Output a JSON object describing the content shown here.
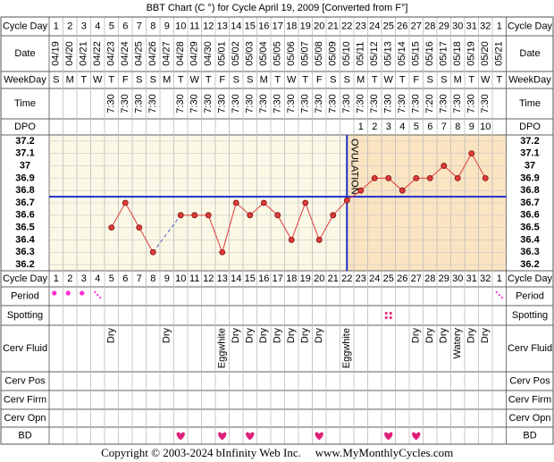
{
  "chart_data": {
    "type": "line",
    "title": "BBT Chart (C °) for Cycle April 19, 2009  [Converted from F°]",
    "row_labels": {
      "cycle_day": "Cycle Day",
      "date": "Date",
      "weekday": "WeekDay",
      "time": "Time",
      "dpo": "DPO",
      "period": "Period",
      "spotting": "Spotting",
      "cerv_fluid": "Cerv Fluid",
      "cerv_pos": "Cerv Pos",
      "cerv_firm": "Cerv Firm",
      "cerv_opn": "Cerv Opn",
      "bd": "BD"
    },
    "categories": [
      1,
      2,
      3,
      4,
      5,
      6,
      7,
      8,
      9,
      10,
      11,
      12,
      13,
      14,
      15,
      16,
      17,
      18,
      19,
      20,
      21,
      22,
      23,
      24,
      25,
      26,
      27,
      28,
      29,
      30,
      31,
      32,
      1
    ],
    "dates": [
      "04/19",
      "04/20",
      "04/21",
      "04/22",
      "04/23",
      "04/24",
      "04/25",
      "04/26",
      "04/27",
      "04/28",
      "04/29",
      "04/30",
      "05/01",
      "05/02",
      "05/03",
      "05/04",
      "05/05",
      "05/06",
      "05/07",
      "05/08",
      "05/09",
      "05/10",
      "05/11",
      "05/12",
      "05/13",
      "05/14",
      "05/15",
      "05/16",
      "05/17",
      "05/18",
      "05/19",
      "05/20",
      "05/21"
    ],
    "weekdays": [
      "S",
      "M",
      "T",
      "W",
      "T",
      "F",
      "S",
      "S",
      "M",
      "T",
      "W",
      "T",
      "F",
      "S",
      "S",
      "M",
      "T",
      "W",
      "T",
      "F",
      "S",
      "S",
      "M",
      "T",
      "W",
      "T",
      "F",
      "S",
      "S",
      "M",
      "T",
      "W",
      "T"
    ],
    "times": [
      null,
      null,
      null,
      null,
      "7:30",
      "7:30",
      "7:30",
      "7:30",
      null,
      "7:30",
      "7:30",
      "7:30",
      "7:30",
      "7:30",
      "7:30",
      "7:30",
      "7:30",
      "7:30",
      "7:30",
      "7:30",
      "7:30",
      "7:30",
      "7:30",
      "7:30",
      "7:30",
      "7:30",
      "7:30",
      "7:20",
      "7:30",
      "7:30",
      "7:30",
      "7:30",
      null
    ],
    "dpo": [
      null,
      null,
      null,
      null,
      null,
      null,
      null,
      null,
      null,
      null,
      null,
      null,
      null,
      null,
      null,
      null,
      null,
      null,
      null,
      null,
      null,
      null,
      1,
      2,
      3,
      4,
      5,
      6,
      7,
      8,
      9,
      10,
      null
    ],
    "values": [
      null,
      null,
      null,
      null,
      36.5,
      36.7,
      36.5,
      36.3,
      null,
      36.6,
      36.6,
      36.6,
      36.3,
      36.7,
      36.6,
      36.7,
      36.6,
      36.4,
      36.7,
      36.4,
      36.6,
      36.72,
      36.8,
      36.9,
      36.9,
      36.8,
      36.9,
      36.9,
      37.0,
      36.9,
      37.1,
      36.9,
      null
    ],
    "color": "#e03a3a",
    "ylim": [
      36.15,
      37.25
    ],
    "yticks": [
      37.2,
      37.1,
      37.0,
      36.9,
      36.8,
      36.7,
      36.6,
      36.5,
      36.4,
      36.3,
      36.2
    ],
    "coverline": 36.75,
    "coverline_color": "#1f2fcc",
    "ovulation_day": 22,
    "ovulation_label": "OVULATION",
    "cerv_fluid": [
      null,
      null,
      null,
      null,
      "Dry",
      null,
      null,
      null,
      "Dry",
      null,
      null,
      null,
      "Eggwhite",
      "Dry",
      "Dry",
      "Dry",
      "Dry",
      "Dry",
      "Dry",
      "Dry",
      null,
      "Eggwhite",
      null,
      null,
      null,
      null,
      "Dry",
      "Dry",
      "Dry",
      "Watery",
      "Dry",
      "Dry",
      null
    ],
    "period_heavy_columns": [
      1,
      2,
      3
    ],
    "period_light_columns": [
      4,
      33
    ],
    "spotting_columns": [
      25
    ],
    "bd_columns": [
      10,
      13,
      15,
      20,
      25,
      27
    ]
  },
  "footer": {
    "copyright": "Copyright © 2003-2024 bInfinity Web Inc.",
    "site": "www.MyMonthlyCycles.com"
  }
}
